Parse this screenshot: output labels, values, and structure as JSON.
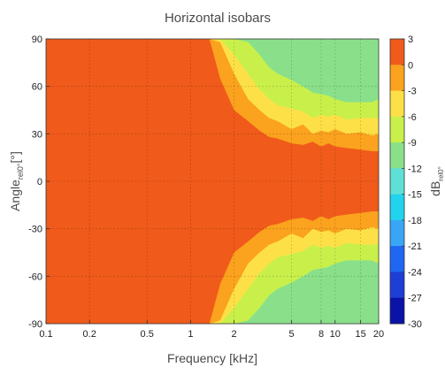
{
  "chart_data": {
    "type": "heatmap",
    "title": "Horizontal isobars",
    "xlabel": "Frequency [kHz]",
    "ylabel": "Angle",
    "ylabel_sub": "rel0°",
    "ylabel_unit": "[°]",
    "colorbar_label": "dB",
    "colorbar_label_sub": "rel0°",
    "x_scale": "log",
    "xlim": [
      0.1,
      20
    ],
    "ylim": [
      -90,
      90
    ],
    "x_ticks": [
      0.1,
      0.2,
      0.5,
      1,
      2,
      5,
      8,
      10,
      15,
      20
    ],
    "x_tick_labels": [
      "0.1",
      "0.2",
      "0.5",
      "1",
      "2",
      "5",
      "8",
      "10",
      "15",
      "20"
    ],
    "y_ticks": [
      90,
      60,
      30,
      0,
      -30,
      -60,
      -90
    ],
    "y_tick_labels": [
      "90",
      "60",
      "30",
      "0",
      "-30",
      "-60",
      "-90"
    ],
    "grid": true,
    "colorbar": {
      "levels": [
        3,
        0,
        -3,
        -6,
        -9,
        -12,
        -15,
        -18,
        -21,
        -24,
        -27,
        -30
      ],
      "labels": [
        "3",
        "0",
        "-3",
        "-6",
        "-9",
        "-12",
        "-15",
        "-18",
        "-21",
        "-24",
        "-27",
        "-30"
      ],
      "colors": [
        "#f05a1a",
        "#fba21e",
        "#fde047",
        "#c9f04a",
        "#8ae08a",
        "#5fe0d6",
        "#22d3ee",
        "#38a6f5",
        "#1f66f2",
        "#1d3fd6",
        "#0a12a8"
      ]
    },
    "beamwidth_contours": {
      "frequencies_khz": [
        1.35,
        1.6,
        2,
        2.5,
        3,
        3.5,
        4,
        5,
        6,
        7,
        8,
        9,
        10,
        12,
        15,
        18,
        20
      ],
      "minus3_db_angle": [
        90,
        65,
        45,
        38,
        32,
        28,
        27,
        24,
        23,
        25,
        22,
        24,
        22,
        21,
        20,
        19,
        19
      ],
      "minus6_db_angle": [
        90,
        88,
        68,
        52,
        45,
        40,
        38,
        33,
        36,
        30,
        32,
        31,
        33,
        30,
        31,
        29,
        30
      ],
      "minus9_db_angle": [
        90,
        90,
        80,
        68,
        58,
        52,
        48,
        46,
        44,
        40,
        42,
        41,
        42,
        39,
        40,
        40,
        40
      ],
      "minus12_db_angle": [
        90,
        90,
        90,
        88,
        80,
        72,
        68,
        64,
        60,
        56,
        55,
        54,
        52,
        50,
        50,
        50,
        52
      ]
    }
  }
}
